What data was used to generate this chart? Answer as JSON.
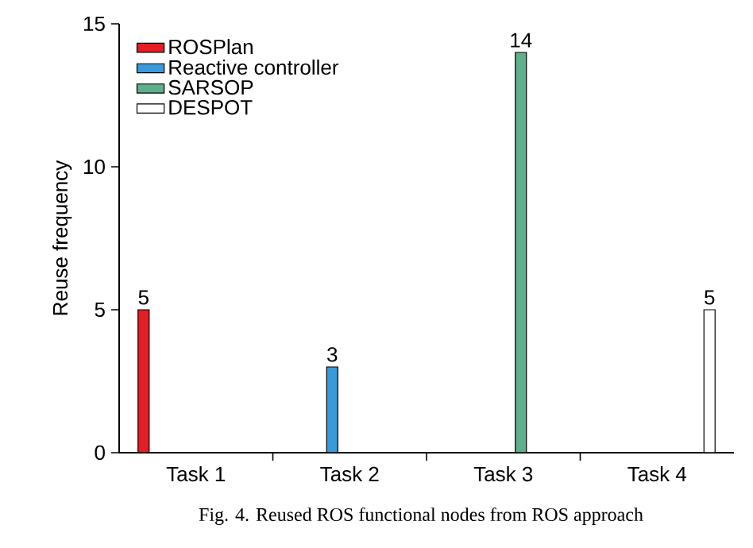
{
  "chart_data": {
    "type": "bar",
    "categories": [
      "Task 1",
      "Task 2",
      "Task 3",
      "Task 4"
    ],
    "series": [
      {
        "name": "ROSPlan",
        "color": "#e31e24",
        "values": [
          5,
          null,
          null,
          null
        ]
      },
      {
        "name": "Reactive controller",
        "color": "#3a9ad9",
        "values": [
          null,
          3,
          null,
          null
        ]
      },
      {
        "name": "SARSOP",
        "color": "#5fae8c",
        "values": [
          null,
          null,
          14,
          null
        ]
      },
      {
        "name": "DESPOT",
        "color": "#ffffff",
        "values": [
          null,
          null,
          null,
          5
        ]
      }
    ],
    "ylabel": "Reuse frequency",
    "ylim": [
      0,
      15
    ],
    "yticks": [
      0,
      5,
      10,
      15
    ],
    "data_labels": true,
    "legend": "top left",
    "annotations": [
      "Fig. 4. Reused ROS functional nodes from ROS approach"
    ]
  }
}
